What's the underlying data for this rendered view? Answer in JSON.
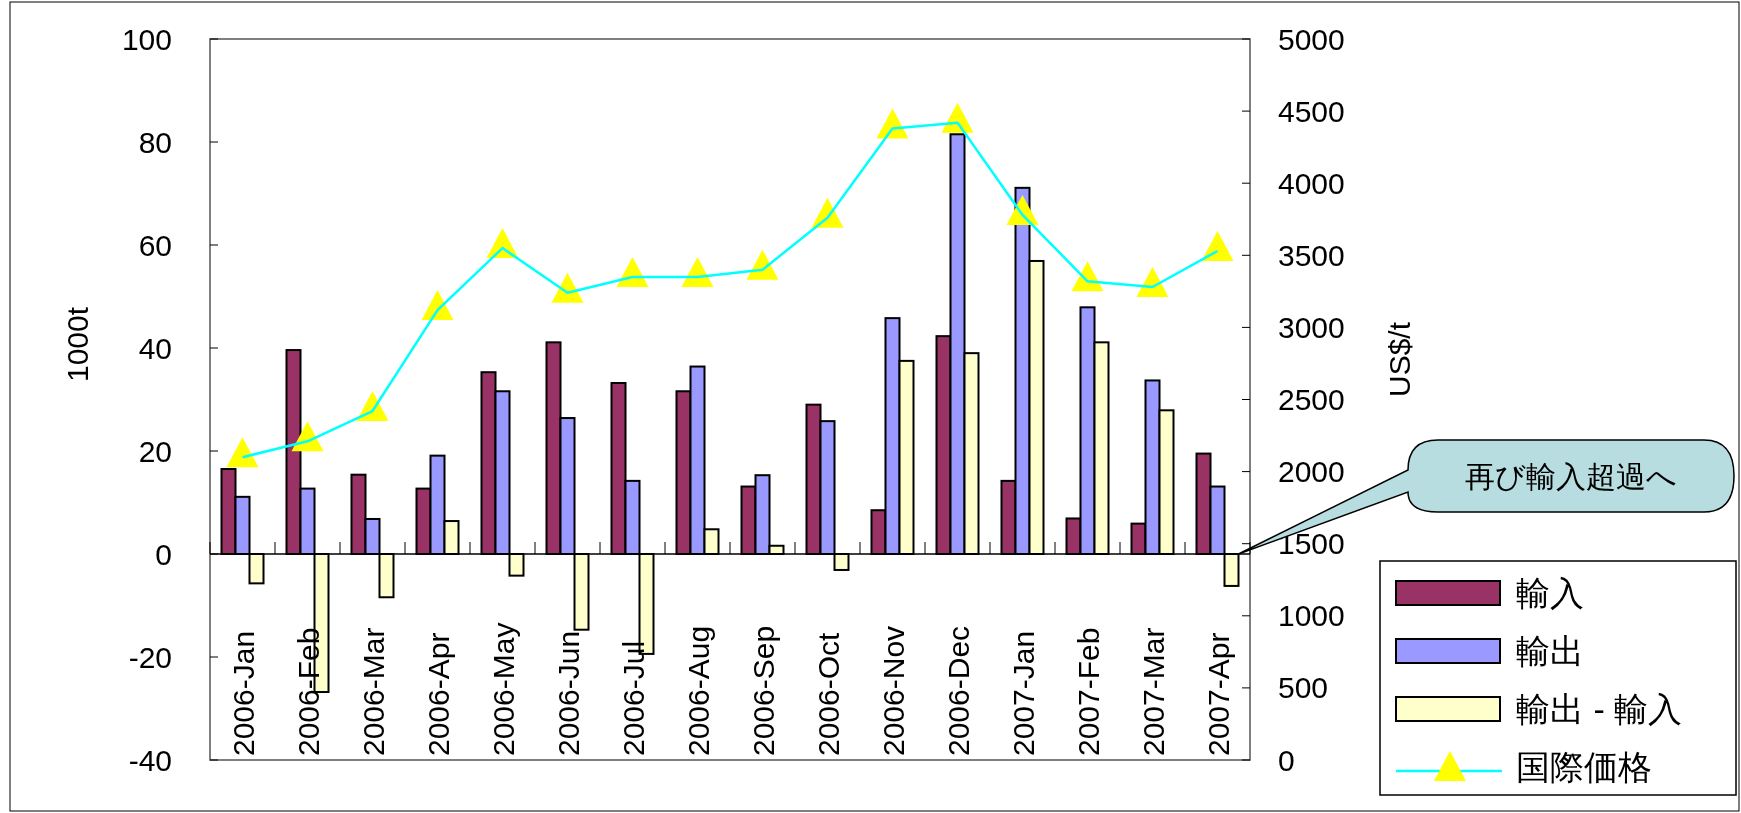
{
  "chart_data": {
    "type": "bar",
    "ylabel": "1000t",
    "y2label": "US$/t",
    "categories": [
      "2006-Jan",
      "2006-Feb",
      "2006-Mar",
      "2006-Apr",
      "2006-May",
      "2006-Jun",
      "2006-Jul",
      "2006-Aug",
      "2006-Sep",
      "2006-Oct",
      "2006-Nov",
      "2006-Dec",
      "2007-Jan",
      "2007-Feb",
      "2007-Mar",
      "2007-Apr"
    ],
    "series": [
      {
        "name": "輸入",
        "color": "#993366",
        "values": [
          16.5,
          39.6,
          15.4,
          12.7,
          35.3,
          41.1,
          33.2,
          31.6,
          13.1,
          29.0,
          8.5,
          42.3,
          14.2,
          6.9,
          5.9,
          19.5
        ]
      },
      {
        "name": "輸出",
        "color": "#9999ff",
        "values": [
          11.1,
          12.7,
          6.8,
          19.1,
          31.6,
          26.4,
          14.2,
          36.4,
          15.3,
          25.8,
          45.8,
          81.5,
          71.1,
          47.9,
          33.7,
          13.1
        ]
      },
      {
        "name": "輸出 - 輸入",
        "color": "#ffffcc",
        "values": [
          -5.7,
          -26.8,
          -8.4,
          6.4,
          -4.2,
          -14.7,
          -19.4,
          4.8,
          1.6,
          -3.1,
          37.5,
          39.0,
          56.9,
          41.1,
          27.9,
          -6.2
        ]
      },
      {
        "name": "国際価格",
        "type": "line",
        "axis": "y2",
        "color": "#00ffff",
        "marker": "triangle",
        "values": [
          2100,
          2210,
          2420,
          3120,
          3550,
          3240,
          3350,
          3350,
          3400,
          3760,
          4380,
          4420,
          3780,
          3320,
          3280,
          3530
        ]
      }
    ],
    "ylim": [
      -40,
      100
    ],
    "yticks": [
      -40,
      -20,
      0,
      20,
      40,
      60,
      80,
      100
    ],
    "y2lim": [
      0,
      5000
    ],
    "y2ticks": [
      0,
      500,
      1000,
      1500,
      2000,
      2500,
      3000,
      3500,
      4000,
      4500,
      5000
    ],
    "annotations": [
      "再び輸入超過へ"
    ],
    "legend": "bottom right"
  }
}
